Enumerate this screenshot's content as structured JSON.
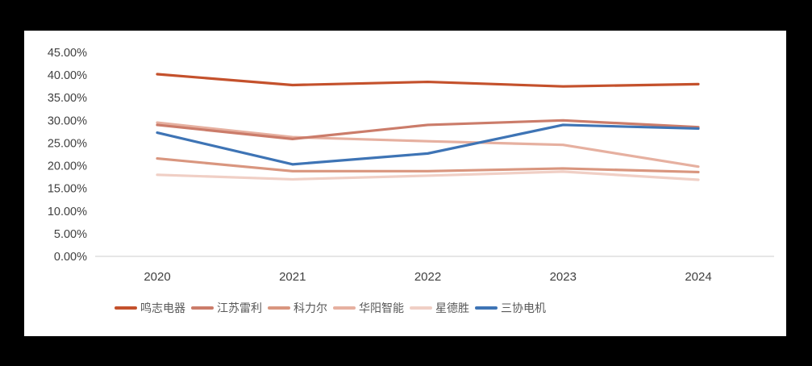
{
  "chart_data": {
    "type": "line",
    "title": "",
    "xlabel": "",
    "ylabel": "",
    "x_categories": [
      "2020",
      "2021",
      "2022",
      "2023",
      "2024"
    ],
    "y_axis": {
      "min": 0,
      "max": 45,
      "tick_step": 5,
      "tick_labels": [
        "0.00%",
        "5.00%",
        "10.00%",
        "15.00%",
        "20.00%",
        "25.00%",
        "30.00%",
        "35.00%",
        "40.00%",
        "45.00%"
      ]
    },
    "grid": false,
    "legend_position": "bottom",
    "axis_line_color": "#D6D6D6",
    "series": [
      {
        "name": "鸣志电器",
        "color": "#C4512C",
        "values": [
          40.2,
          37.8,
          38.5,
          37.5,
          38.0
        ]
      },
      {
        "name": "江苏雷利",
        "color": "#CB7C6A",
        "values": [
          29.0,
          25.9,
          29.0,
          30.0,
          28.5
        ]
      },
      {
        "name": "科力尔",
        "color": "#D9967F",
        "values": [
          21.6,
          18.8,
          18.8,
          19.4,
          18.6
        ]
      },
      {
        "name": "华阳智能",
        "color": "#E6B0A0",
        "values": [
          29.5,
          26.3,
          25.4,
          24.6,
          19.8
        ]
      },
      {
        "name": "星德胜",
        "color": "#F0CFC5",
        "values": [
          18.0,
          17.0,
          17.8,
          18.7,
          16.9
        ]
      },
      {
        "name": "三协电机",
        "color": "#3E74B5",
        "values": [
          27.3,
          20.3,
          22.7,
          29.0,
          28.2
        ]
      }
    ],
    "draw_order": [
      4,
      3,
      2,
      1,
      0,
      5
    ]
  }
}
